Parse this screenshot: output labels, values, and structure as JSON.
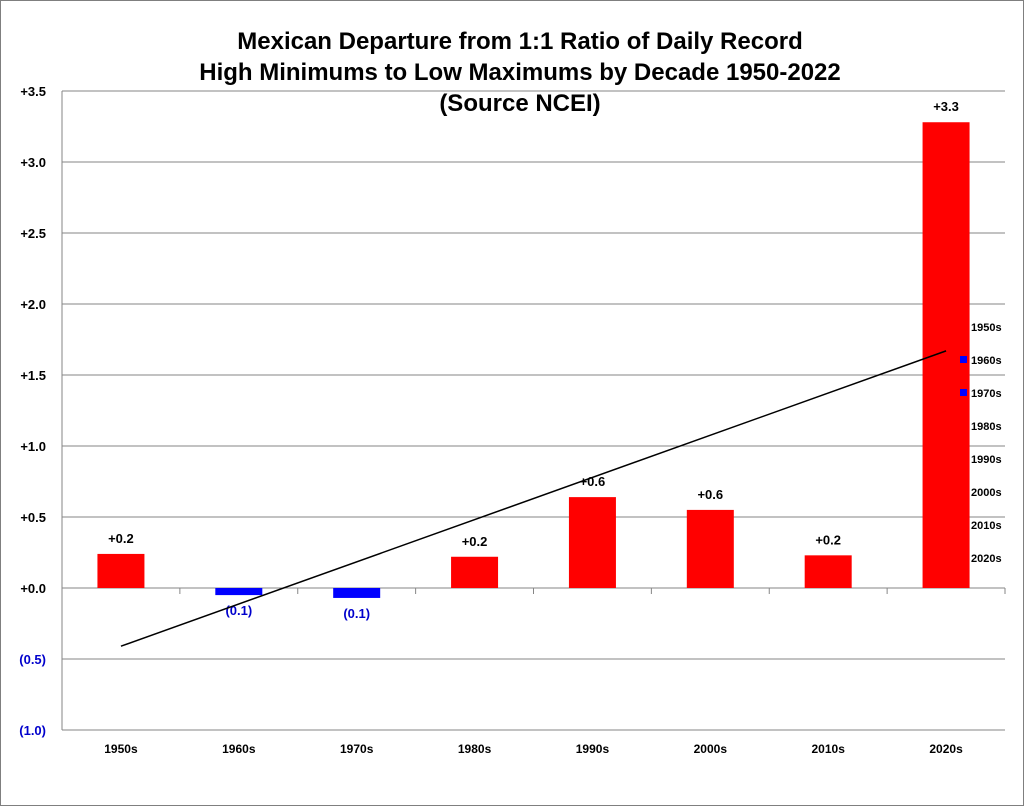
{
  "chart_data": {
    "type": "bar",
    "title_lines": [
      "Mexican Departure from 1:1 Ratio of Daily Record",
      "High Minimums to Low Maximums by Decade 1950-2022",
      "(Source NCEI)"
    ],
    "xlabel": "",
    "ylabel": "",
    "categories": [
      "1950s",
      "1960s",
      "1970s",
      "1980s",
      "1990s",
      "2000s",
      "2010s",
      "2020s"
    ],
    "values": [
      0.24,
      -0.05,
      -0.07,
      0.22,
      0.64,
      0.55,
      0.23,
      3.28
    ],
    "value_labels": [
      "+0.2",
      "(0.1)",
      "(0.1)",
      "+0.2",
      "+0.6",
      "+0.6",
      "+0.2",
      "+3.3"
    ],
    "ylim": [
      -1.0,
      3.5
    ],
    "yticks": [
      -1.0,
      -0.5,
      0.0,
      0.5,
      1.0,
      1.5,
      2.0,
      2.5,
      3.0,
      3.5
    ],
    "ytick_labels": [
      "(1.0)",
      "(0.5)",
      "+0.0",
      "+0.5",
      "+1.0",
      "+1.5",
      "+2.0",
      "+2.5",
      "+3.0",
      "+3.5"
    ],
    "trendline": {
      "type": "linear",
      "start": -0.41,
      "end": 1.67
    },
    "grid": true,
    "legend": {
      "placement": "right",
      "entries": [
        "1950s",
        "1960s",
        "1970s",
        "1980s",
        "1990s",
        "2000s",
        "2010s",
        "2020s"
      ]
    },
    "colors": {
      "positive": "#ff0000",
      "negative": "#0000ff",
      "grid": "#868686",
      "trend": "#000000",
      "negative_label": "#0000cc"
    }
  }
}
